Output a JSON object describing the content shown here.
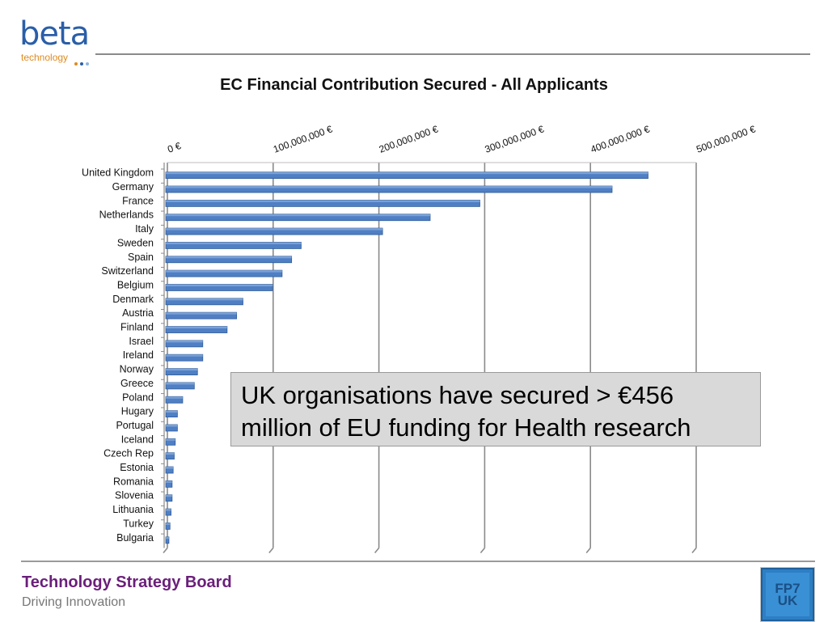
{
  "header": {
    "logo_word": "beta",
    "logo_sub": "technology",
    "logo_dot_colors": [
      "#e08a1e",
      "#2a5ea8",
      "#8fb4dc"
    ]
  },
  "footer": {
    "title": "Technology Strategy Board",
    "subtitle": "Driving Innovation",
    "badge_lines": [
      "FP7",
      "UK"
    ]
  },
  "callout": {
    "line1": "UK organisations have secured > €456",
    "line2": "million of EU funding for Health research"
  },
  "colors": {
    "bar": "#4f7fc4",
    "bar_edge": "#2f5b97",
    "grid": "#8a8a8a",
    "footer_title": "#6a1f7a"
  },
  "chart_data": {
    "type": "bar",
    "orientation": "horizontal",
    "title": "EC Financial Contribution Secured - All Applicants",
    "xlim": [
      0,
      500000000
    ],
    "x_ticks": [
      0,
      100000000,
      200000000,
      300000000,
      400000000,
      500000000
    ],
    "x_tick_labels": [
      "0 €",
      "100,000,000 €",
      "200,000,000 €",
      "300,000,000 €",
      "400,000,000 €",
      "500,000,000 €"
    ],
    "x_axis_position": "top",
    "grid": true,
    "categories": [
      "United Kingdom",
      "Germany",
      "France",
      "Netherlands",
      "Italy",
      "Sweden",
      "Spain",
      "Switzerland",
      "Belgium",
      "Denmark",
      "Austria",
      "Finland",
      "Israel",
      "Ireland",
      "Norway",
      "Greece",
      "Poland",
      "Hugary",
      "Portugal",
      "Iceland",
      "Czech Rep",
      "Estonia",
      "Romania",
      "Slovenia",
      "Lithuania",
      "Turkey",
      "Bulgaria"
    ],
    "values": [
      456000000,
      422000000,
      297000000,
      250000000,
      205000000,
      128000000,
      119000000,
      110000000,
      101000000,
      73000000,
      67000000,
      58000000,
      35000000,
      35000000,
      30000000,
      27000000,
      16000000,
      11000000,
      11000000,
      9000000,
      8000000,
      7000000,
      6000000,
      6000000,
      5000000,
      4000000,
      3000000
    ]
  }
}
